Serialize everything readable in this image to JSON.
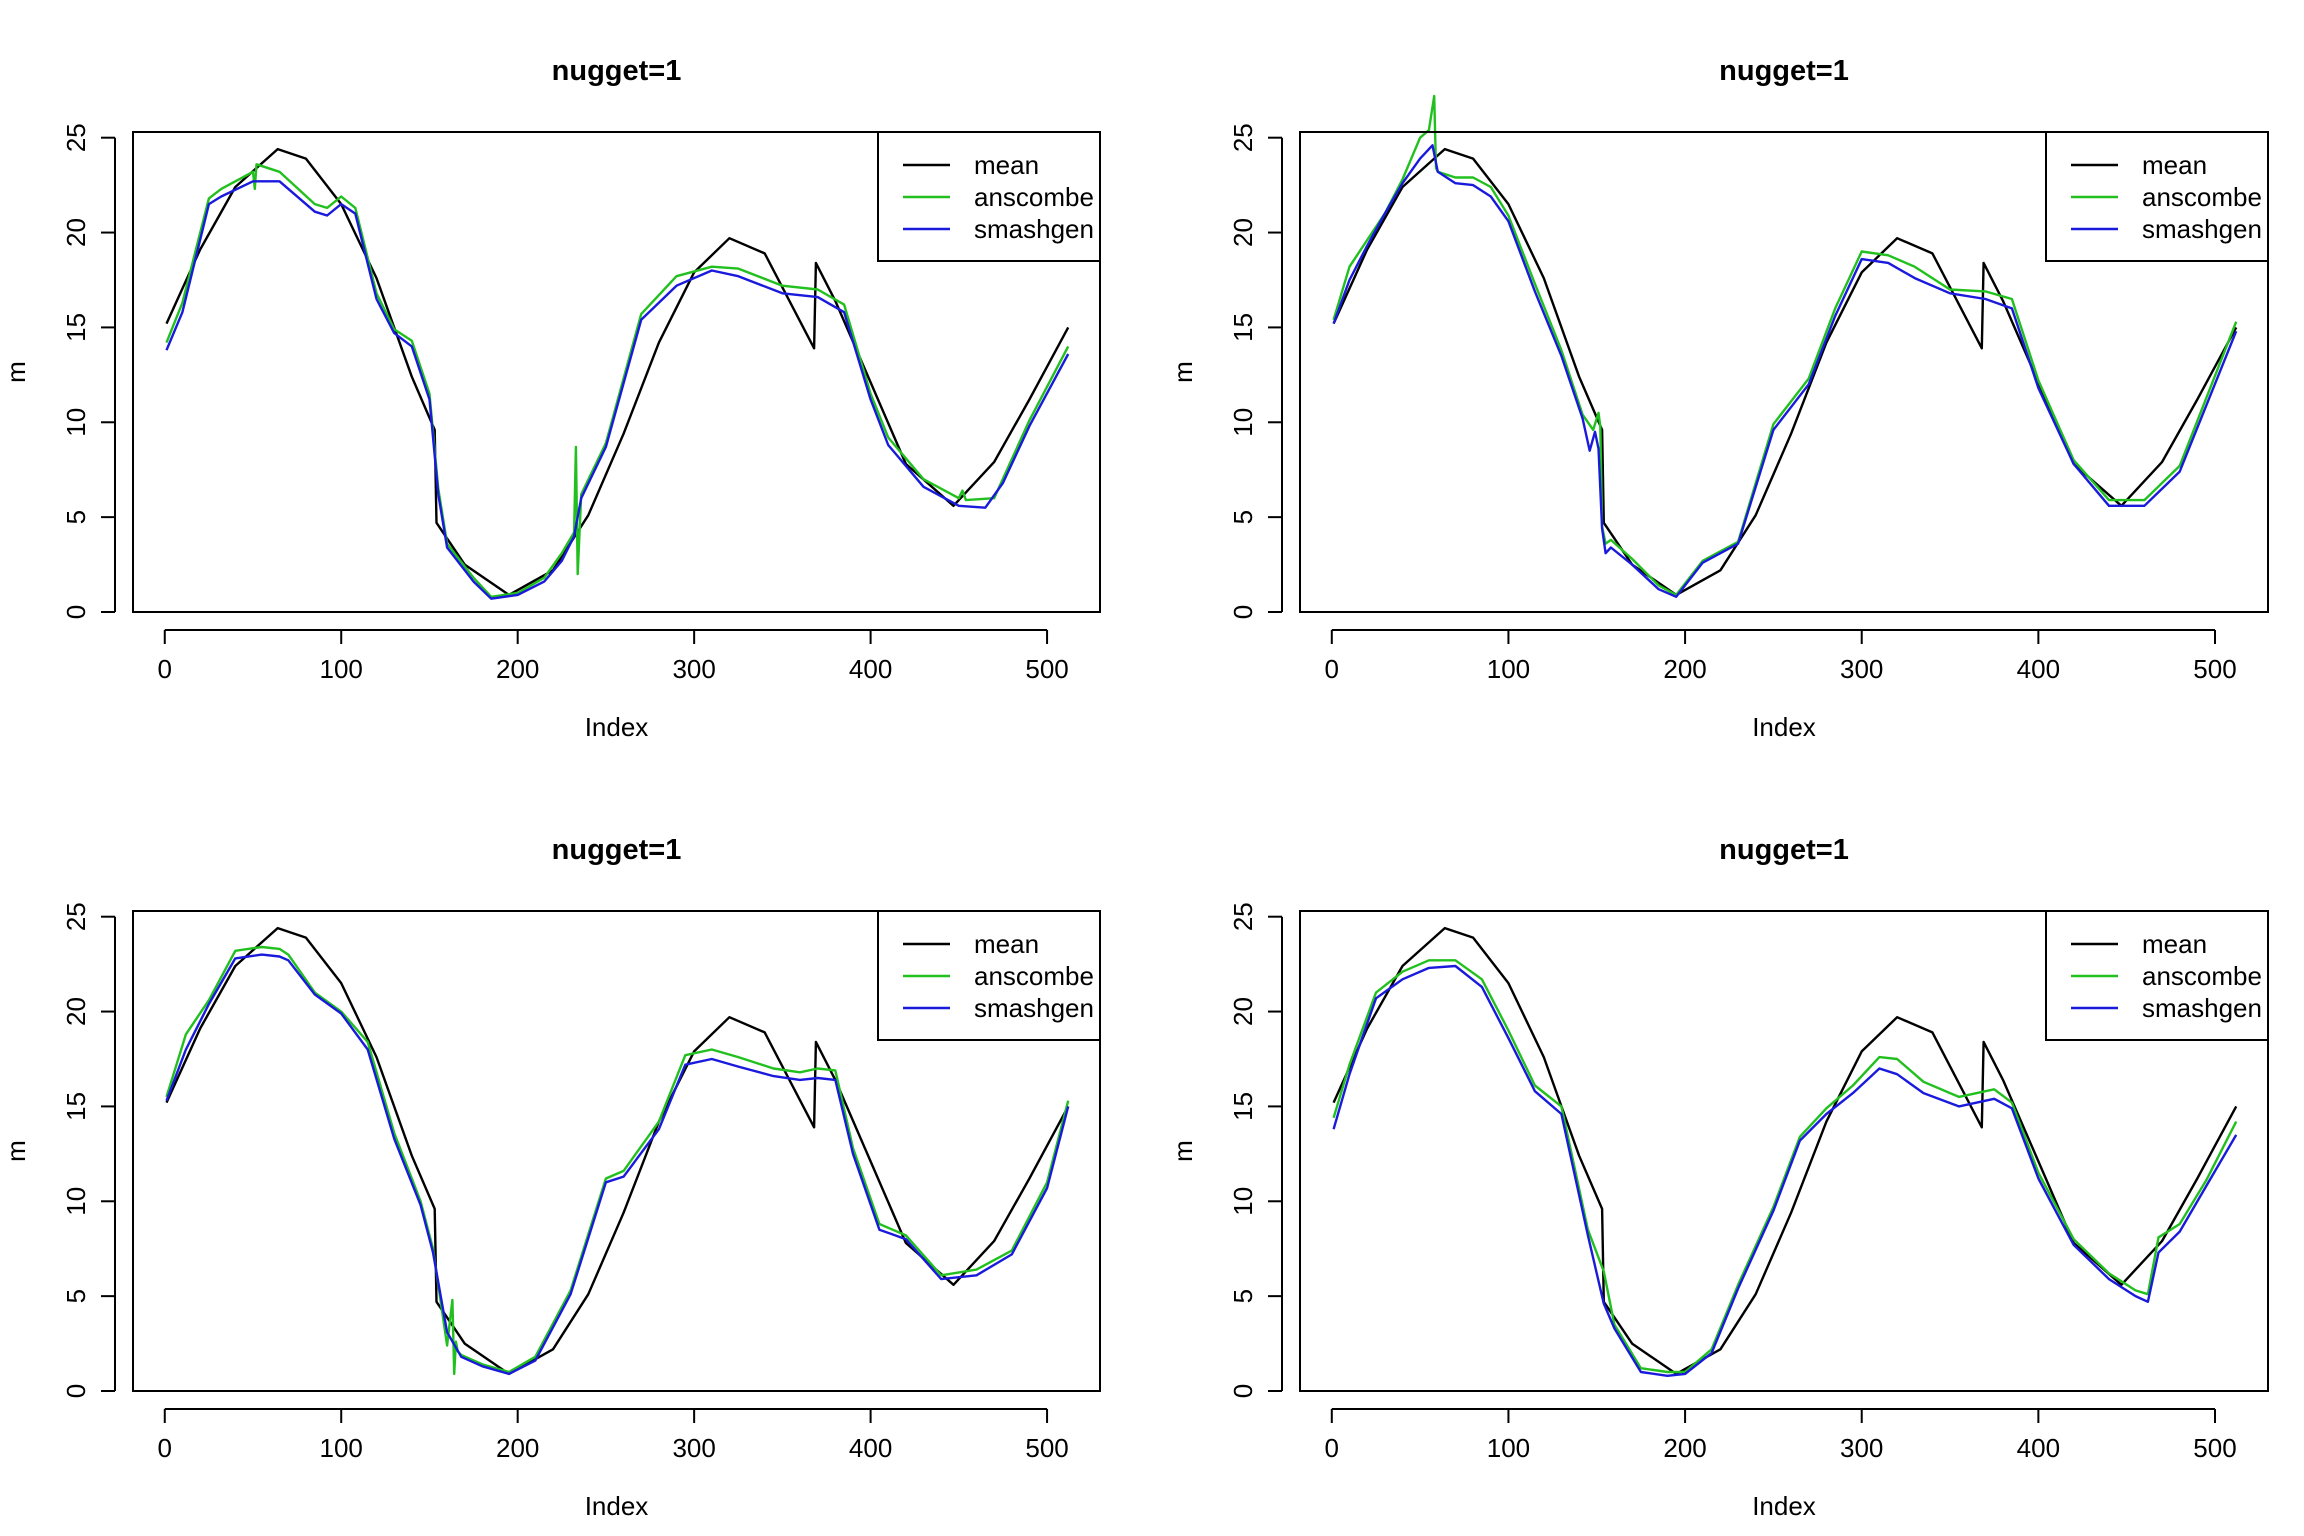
{
  "figure": {
    "background": "#ffffff"
  },
  "series_style": [
    {
      "name": "mean",
      "color": "#000000"
    },
    {
      "name": "anscombe",
      "color": "#22c01e"
    },
    {
      "name": "smashgen",
      "color": "#1a1adc"
    }
  ],
  "chart_data": [
    {
      "type": "line",
      "title": "nugget=1",
      "xlabel": "Index",
      "ylabel": "m",
      "xlim": [
        -18,
        530
      ],
      "ylim": [
        0,
        25.3
      ],
      "xticks": [
        0,
        100,
        200,
        300,
        400,
        500
      ],
      "yticks": [
        0,
        5,
        10,
        15,
        20,
        25
      ],
      "legend": {
        "position": "top-right",
        "labels": [
          "mean",
          "anscombe",
          "smashgen"
        ]
      },
      "series": [
        {
          "name": "mean",
          "x": [
            1,
            20,
            40,
            64,
            80,
            100,
            120,
            140,
            153,
            154,
            170,
            195,
            220,
            240,
            260,
            280,
            300,
            320,
            340,
            368,
            369,
            380,
            400,
            420,
            447,
            470,
            490,
            512
          ],
          "y": [
            15.2,
            19.1,
            22.4,
            24.4,
            23.9,
            21.5,
            17.6,
            12.4,
            9.6,
            4.7,
            2.5,
            0.9,
            2.2,
            5.1,
            9.4,
            14.2,
            17.9,
            19.7,
            18.9,
            13.9,
            18.4,
            16.4,
            12.1,
            7.8,
            5.6,
            7.9,
            11.2,
            15.0
          ]
        },
        {
          "name": "anscombe",
          "x": [
            1,
            10,
            25,
            32,
            50,
            51,
            52,
            65,
            85,
            92,
            100,
            108,
            120,
            130,
            140,
            150,
            155,
            160,
            175,
            185,
            200,
            215,
            225,
            232,
            233,
            234,
            236,
            250,
            270,
            290,
            310,
            325,
            350,
            370,
            385,
            400,
            410,
            430,
            450,
            452,
            454,
            470,
            490,
            512
          ],
          "y": [
            14.2,
            16.3,
            21.8,
            22.3,
            23.2,
            22.3,
            23.6,
            23.2,
            21.5,
            21.3,
            21.9,
            21.3,
            16.8,
            14.9,
            14.3,
            11.5,
            6.5,
            3.6,
            1.8,
            0.8,
            1.0,
            1.8,
            3.1,
            4.2,
            8.7,
            2.0,
            6.2,
            8.9,
            15.7,
            17.7,
            18.2,
            18.1,
            17.2,
            17.0,
            16.2,
            11.5,
            9.2,
            7.0,
            6.0,
            6.4,
            5.9,
            6.0,
            10.1,
            14.0
          ]
        },
        {
          "name": "smashgen",
          "x": [
            1,
            10,
            25,
            32,
            50,
            65,
            85,
            92,
            100,
            108,
            120,
            130,
            140,
            150,
            155,
            160,
            175,
            185,
            200,
            215,
            225,
            232,
            236,
            250,
            270,
            290,
            310,
            325,
            350,
            370,
            385,
            400,
            410,
            430,
            450,
            465,
            475,
            490,
            512
          ],
          "y": [
            13.8,
            15.8,
            21.5,
            21.9,
            22.7,
            22.7,
            21.1,
            20.9,
            21.5,
            21.0,
            16.5,
            14.7,
            14.0,
            11.2,
            6.2,
            3.4,
            1.6,
            0.7,
            0.9,
            1.6,
            2.7,
            4.0,
            6.0,
            8.7,
            15.4,
            17.2,
            18.0,
            17.7,
            16.8,
            16.6,
            15.8,
            11.2,
            8.8,
            6.6,
            5.6,
            5.5,
            6.8,
            9.8,
            13.6
          ]
        }
      ]
    },
    {
      "type": "line",
      "title": "nugget=1",
      "xlabel": "Index",
      "ylabel": "m",
      "xlim": [
        -18,
        530
      ],
      "ylim": [
        0,
        25.3
      ],
      "xticks": [
        0,
        100,
        200,
        300,
        400,
        500
      ],
      "yticks": [
        0,
        5,
        10,
        15,
        20,
        25
      ],
      "legend": {
        "position": "top-right",
        "labels": [
          "mean",
          "anscombe",
          "smashgen"
        ]
      },
      "series": [
        {
          "name": "mean",
          "x": [
            1,
            20,
            40,
            64,
            80,
            100,
            120,
            140,
            153,
            154,
            170,
            195,
            220,
            240,
            260,
            280,
            300,
            320,
            340,
            368,
            369,
            380,
            400,
            420,
            447,
            470,
            490,
            512
          ],
          "y": [
            15.2,
            19.1,
            22.4,
            24.4,
            23.9,
            21.5,
            17.6,
            12.4,
            9.6,
            4.7,
            2.5,
            0.9,
            2.2,
            5.1,
            9.4,
            14.2,
            17.9,
            19.7,
            18.9,
            13.9,
            18.4,
            16.4,
            12.1,
            7.8,
            5.6,
            7.9,
            11.2,
            15.0
          ]
        },
        {
          "name": "anscombe",
          "x": [
            1,
            10,
            20,
            30,
            40,
            50,
            55,
            58,
            59,
            60,
            70,
            80,
            90,
            100,
            115,
            130,
            142,
            148,
            151,
            152,
            153,
            155,
            158,
            170,
            185,
            195,
            210,
            230,
            250,
            270,
            285,
            300,
            315,
            330,
            350,
            370,
            385,
            400,
            420,
            440,
            460,
            480,
            512
          ],
          "y": [
            15.4,
            18.2,
            19.6,
            21.0,
            22.8,
            25.0,
            25.4,
            27.2,
            23.4,
            23.2,
            22.9,
            22.9,
            22.4,
            20.9,
            17.3,
            13.8,
            10.4,
            9.6,
            10.5,
            9.8,
            4.5,
            3.6,
            3.8,
            2.8,
            1.4,
            0.9,
            2.7,
            3.7,
            9.9,
            12.3,
            16.0,
            19.0,
            18.8,
            18.2,
            17.0,
            16.9,
            16.5,
            12.2,
            8.0,
            5.9,
            5.9,
            7.7,
            15.3
          ]
        },
        {
          "name": "smashgen",
          "x": [
            1,
            10,
            20,
            30,
            40,
            50,
            57,
            60,
            70,
            80,
            90,
            100,
            115,
            130,
            142,
            146,
            149,
            151,
            153,
            155,
            158,
            170,
            185,
            195,
            210,
            230,
            250,
            270,
            285,
            300,
            315,
            330,
            350,
            370,
            385,
            400,
            420,
            440,
            460,
            480,
            512
          ],
          "y": [
            15.2,
            17.5,
            19.3,
            21.0,
            22.6,
            23.9,
            24.6,
            23.2,
            22.6,
            22.5,
            21.9,
            20.6,
            16.9,
            13.5,
            10.2,
            8.5,
            9.5,
            8.6,
            4.4,
            3.1,
            3.4,
            2.5,
            1.2,
            0.8,
            2.6,
            3.6,
            9.6,
            12.0,
            15.6,
            18.6,
            18.4,
            17.6,
            16.8,
            16.5,
            16.0,
            11.8,
            7.8,
            5.6,
            5.6,
            7.4,
            14.8
          ]
        }
      ]
    },
    {
      "type": "line",
      "title": "nugget=1",
      "xlabel": "Index",
      "ylabel": "m",
      "xlim": [
        -18,
        530
      ],
      "ylim": [
        0,
        25.3
      ],
      "xticks": [
        0,
        100,
        200,
        300,
        400,
        500
      ],
      "yticks": [
        0,
        5,
        10,
        15,
        20,
        25
      ],
      "legend": {
        "position": "top-right",
        "labels": [
          "mean",
          "anscombe",
          "smashgen"
        ]
      },
      "series": [
        {
          "name": "mean",
          "x": [
            1,
            20,
            40,
            64,
            80,
            100,
            120,
            140,
            153,
            154,
            170,
            195,
            220,
            240,
            260,
            280,
            300,
            320,
            340,
            368,
            369,
            380,
            400,
            420,
            447,
            470,
            490,
            512
          ],
          "y": [
            15.2,
            19.1,
            22.4,
            24.4,
            23.9,
            21.5,
            17.6,
            12.4,
            9.6,
            4.7,
            2.5,
            0.9,
            2.2,
            5.1,
            9.4,
            14.2,
            17.9,
            19.7,
            18.9,
            13.9,
            18.4,
            16.4,
            12.1,
            7.8,
            5.6,
            7.9,
            11.2,
            15.0
          ]
        },
        {
          "name": "anscombe",
          "x": [
            1,
            12,
            25,
            40,
            55,
            65,
            70,
            85,
            100,
            115,
            130,
            145,
            152,
            160,
            163,
            164,
            165,
            166,
            168,
            180,
            195,
            210,
            230,
            250,
            260,
            280,
            295,
            310,
            325,
            345,
            360,
            370,
            380,
            390,
            405,
            420,
            440,
            460,
            480,
            500,
            512
          ],
          "y": [
            15.5,
            18.8,
            20.6,
            23.2,
            23.4,
            23.3,
            23.0,
            21.0,
            20.0,
            18.4,
            13.6,
            10.0,
            7.5,
            2.4,
            4.8,
            0.9,
            2.6,
            2.1,
            1.9,
            1.4,
            1.0,
            1.8,
            5.3,
            11.2,
            11.6,
            14.2,
            17.7,
            18.0,
            17.6,
            17.0,
            16.8,
            17.0,
            16.9,
            12.8,
            8.8,
            8.2,
            6.1,
            6.4,
            7.4,
            11.0,
            15.3
          ]
        },
        {
          "name": "smashgen",
          "x": [
            1,
            12,
            25,
            40,
            55,
            65,
            70,
            85,
            100,
            115,
            130,
            145,
            152,
            160,
            168,
            180,
            195,
            210,
            230,
            250,
            260,
            280,
            295,
            310,
            325,
            345,
            360,
            370,
            380,
            390,
            405,
            420,
            440,
            460,
            480,
            500,
            512
          ],
          "y": [
            15.3,
            18.0,
            20.4,
            22.8,
            23.0,
            22.9,
            22.7,
            20.9,
            19.9,
            18.0,
            13.3,
            9.8,
            7.3,
            3.1,
            1.8,
            1.3,
            0.9,
            1.6,
            5.1,
            11.0,
            11.3,
            13.8,
            17.2,
            17.5,
            17.1,
            16.6,
            16.4,
            16.5,
            16.4,
            12.5,
            8.5,
            8.0,
            5.9,
            6.1,
            7.2,
            10.7,
            15.0
          ]
        }
      ]
    },
    {
      "type": "line",
      "title": "nugget=1",
      "xlabel": "Index",
      "ylabel": "m",
      "xlim": [
        -18,
        530
      ],
      "ylim": [
        0,
        25.3
      ],
      "xticks": [
        0,
        100,
        200,
        300,
        400,
        500
      ],
      "yticks": [
        0,
        5,
        10,
        15,
        20,
        25
      ],
      "legend": {
        "position": "top-right",
        "labels": [
          "mean",
          "anscombe",
          "smashgen"
        ]
      },
      "series": [
        {
          "name": "mean",
          "x": [
            1,
            20,
            40,
            64,
            80,
            100,
            120,
            140,
            153,
            154,
            170,
            195,
            220,
            240,
            260,
            280,
            300,
            320,
            340,
            368,
            369,
            380,
            400,
            420,
            447,
            470,
            490,
            512
          ],
          "y": [
            15.2,
            19.1,
            22.4,
            24.4,
            23.9,
            21.5,
            17.6,
            12.4,
            9.6,
            4.7,
            2.5,
            0.9,
            2.2,
            5.1,
            9.4,
            14.2,
            17.9,
            19.7,
            18.9,
            13.9,
            18.4,
            16.4,
            12.1,
            7.8,
            5.6,
            7.9,
            11.2,
            15.0
          ]
        },
        {
          "name": "anscombe",
          "x": [
            1,
            10,
            25,
            40,
            55,
            70,
            85,
            100,
            115,
            130,
            145,
            154,
            160,
            175,
            190,
            200,
            215,
            230,
            250,
            265,
            280,
            295,
            310,
            320,
            335,
            355,
            375,
            385,
            400,
            420,
            440,
            455,
            462,
            468,
            480,
            495,
            512
          ],
          "y": [
            14.4,
            17.2,
            21.0,
            22.1,
            22.7,
            22.7,
            21.7,
            19.0,
            16.1,
            15.0,
            8.5,
            6.3,
            3.5,
            1.2,
            1.0,
            1.0,
            2.2,
            5.6,
            9.7,
            13.4,
            14.9,
            16.1,
            17.6,
            17.5,
            16.3,
            15.5,
            15.9,
            15.2,
            11.5,
            8.0,
            6.2,
            5.3,
            5.1,
            8.1,
            8.8,
            11.1,
            14.2
          ]
        },
        {
          "name": "smashgen",
          "x": [
            1,
            10,
            25,
            40,
            55,
            70,
            85,
            100,
            115,
            130,
            145,
            154,
            160,
            175,
            190,
            200,
            215,
            230,
            250,
            265,
            280,
            295,
            310,
            320,
            335,
            355,
            375,
            385,
            400,
            420,
            440,
            455,
            462,
            468,
            480,
            495,
            512
          ],
          "y": [
            13.8,
            16.7,
            20.7,
            21.7,
            22.3,
            22.4,
            21.3,
            18.6,
            15.8,
            14.6,
            8.2,
            4.6,
            3.3,
            1.0,
            0.8,
            0.9,
            2.0,
            5.4,
            9.5,
            13.2,
            14.6,
            15.7,
            17.0,
            16.7,
            15.7,
            15.0,
            15.4,
            14.9,
            11.2,
            7.7,
            5.9,
            5.0,
            4.7,
            7.3,
            8.4,
            10.8,
            13.5
          ]
        }
      ]
    }
  ]
}
